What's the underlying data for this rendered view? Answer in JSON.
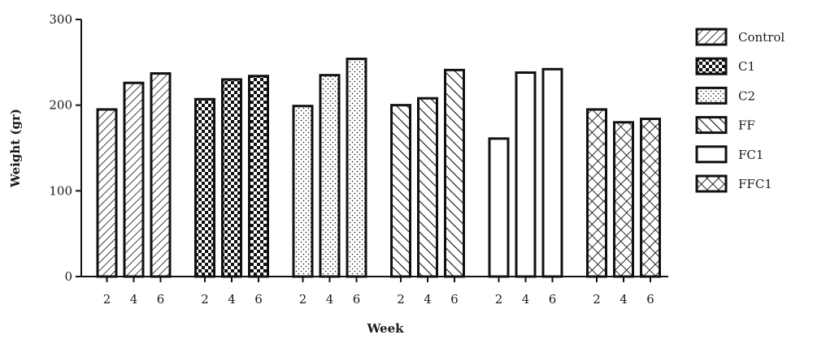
{
  "chart_data": {
    "type": "bar",
    "ylabel": "Weight (gr)",
    "xlabel": "Week",
    "ylim": [
      0,
      300
    ],
    "yticks": [
      "0",
      "100",
      "200",
      "300"
    ],
    "legend_position": "right",
    "grid": false,
    "groups": [
      {
        "name": "Control",
        "pattern": "diag-right",
        "weeks": [
          "2",
          "4",
          "6"
        ],
        "values": [
          195,
          226,
          237
        ]
      },
      {
        "name": "C1",
        "pattern": "checker",
        "weeks": [
          "2",
          "4",
          "6"
        ],
        "values": [
          207,
          230,
          234
        ]
      },
      {
        "name": "C2",
        "pattern": "dots",
        "weeks": [
          "2",
          "4",
          "6"
        ],
        "values": [
          199,
          235,
          254
        ]
      },
      {
        "name": "FF",
        "pattern": "diag-left",
        "weeks": [
          "2",
          "4",
          "6"
        ],
        "values": [
          200,
          208,
          241
        ]
      },
      {
        "name": "FC1",
        "pattern": "empty",
        "weeks": [
          "2",
          "4",
          "6"
        ],
        "values": [
          161,
          238,
          242
        ]
      },
      {
        "name": "FFC1",
        "pattern": "crosshatch",
        "weeks": [
          "2",
          "4",
          "6"
        ],
        "values": [
          195,
          180,
          184
        ]
      }
    ]
  }
}
